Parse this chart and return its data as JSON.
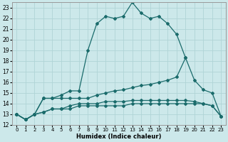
{
  "xlabel": "Humidex (Indice chaleur)",
  "bg_color": "#cce8ea",
  "grid_color": "#b0d4d6",
  "line_color": "#1a6b6b",
  "xlim": [
    -0.5,
    23.5
  ],
  "ylim": [
    12,
    23.5
  ],
  "xticks": [
    0,
    1,
    2,
    3,
    4,
    5,
    6,
    7,
    8,
    9,
    10,
    11,
    12,
    13,
    14,
    15,
    16,
    17,
    18,
    19,
    20,
    21,
    22,
    23
  ],
  "yticks": [
    12,
    13,
    14,
    15,
    16,
    17,
    18,
    19,
    20,
    21,
    22,
    23
  ],
  "lines": [
    {
      "x": [
        0,
        1,
        2,
        3,
        4,
        5,
        6,
        7,
        8,
        9,
        10,
        11,
        12,
        13,
        14,
        15,
        16,
        17,
        18,
        19
      ],
      "y": [
        13,
        12.5,
        13,
        14.5,
        14.5,
        14.8,
        15.2,
        15.2,
        19.0,
        21.5,
        22.2,
        22.0,
        22.2,
        23.5,
        22.5,
        22.0,
        22.2,
        21.5,
        20.5,
        18.3
      ]
    },
    {
      "x": [
        0,
        1,
        2,
        3,
        4,
        5,
        6,
        7,
        8,
        9,
        10,
        11,
        12,
        13,
        14,
        15,
        16,
        17,
        18,
        19,
        20,
        21,
        22,
        23
      ],
      "y": [
        13,
        12.5,
        13,
        14.5,
        14.5,
        14.5,
        14.5,
        14.5,
        14.5,
        14.8,
        15.0,
        15.2,
        15.3,
        15.5,
        15.7,
        15.8,
        16.0,
        16.2,
        16.5,
        18.3,
        16.2,
        15.3,
        15.0,
        12.8
      ]
    },
    {
      "x": [
        0,
        1,
        2,
        3,
        4,
        5,
        6,
        7,
        8,
        9,
        10,
        11,
        12,
        13,
        14,
        15,
        16,
        17,
        18,
        19,
        20,
        21,
        22,
        23
      ],
      "y": [
        13,
        12.5,
        13,
        13.2,
        13.5,
        13.5,
        13.5,
        13.8,
        13.8,
        13.8,
        13.8,
        13.8,
        13.8,
        14.0,
        14.0,
        14.0,
        14.0,
        14.0,
        14.0,
        14.0,
        14.0,
        14.0,
        13.8,
        12.8
      ]
    },
    {
      "x": [
        0,
        1,
        2,
        3,
        4,
        5,
        6,
        7,
        8,
        9,
        10,
        11,
        12,
        13,
        14,
        15,
        16,
        17,
        18,
        19,
        20,
        21,
        22,
        23
      ],
      "y": [
        13,
        12.5,
        13,
        13.2,
        13.5,
        13.5,
        13.8,
        14.0,
        14.0,
        14.0,
        14.2,
        14.2,
        14.2,
        14.3,
        14.3,
        14.3,
        14.3,
        14.3,
        14.3,
        14.3,
        14.2,
        14.0,
        13.8,
        12.8
      ]
    }
  ]
}
